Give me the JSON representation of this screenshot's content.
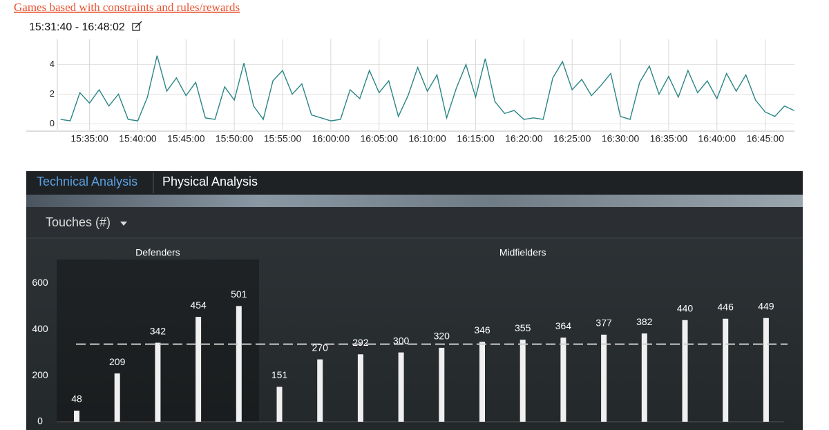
{
  "header": {
    "link": "Games based with constraints and rules/rewards",
    "time_range": "15:31:40 - 16:48:02"
  },
  "tabs": [
    "Technical Analysis",
    "Physical Analysis"
  ],
  "metric_selector": "Touches (#)",
  "chart_data": [
    {
      "type": "line",
      "color": "#2a8585",
      "x": [
        "15:32:00",
        "15:33:00",
        "15:34:00",
        "15:35:00",
        "15:36:00",
        "15:37:00",
        "15:38:00",
        "15:39:00",
        "15:40:00",
        "15:41:00",
        "15:42:00",
        "15:43:00",
        "15:44:00",
        "15:45:00",
        "15:46:00",
        "15:47:00",
        "15:48:00",
        "15:49:00",
        "15:50:00",
        "15:51:00",
        "15:52:00",
        "15:53:00",
        "15:54:00",
        "15:55:00",
        "15:56:00",
        "15:57:00",
        "15:58:00",
        "15:59:00",
        "16:00:00",
        "16:01:00",
        "16:02:00",
        "16:03:00",
        "16:04:00",
        "16:05:00",
        "16:06:00",
        "16:07:00",
        "16:08:00",
        "16:09:00",
        "16:10:00",
        "16:11:00",
        "16:12:00",
        "16:13:00",
        "16:14:00",
        "16:15:00",
        "16:16:00",
        "16:17:00",
        "16:18:00",
        "16:19:00",
        "16:20:00",
        "16:21:00",
        "16:22:00",
        "16:23:00",
        "16:24:00",
        "16:25:00",
        "16:26:00",
        "16:27:00",
        "16:28:00",
        "16:29:00",
        "16:30:00",
        "16:31:00",
        "16:32:00",
        "16:33:00",
        "16:34:00",
        "16:35:00",
        "16:36:00",
        "16:37:00",
        "16:38:00",
        "16:39:00",
        "16:40:00",
        "16:41:00",
        "16:42:00",
        "16:43:00",
        "16:44:00",
        "16:45:00",
        "16:46:00",
        "16:47:00",
        "16:48:00"
      ],
      "values": [
        0.3,
        0.2,
        2.1,
        1.4,
        2.3,
        1.2,
        2.0,
        0.3,
        0.2,
        1.8,
        4.6,
        2.2,
        3.1,
        1.9,
        2.8,
        0.4,
        0.3,
        2.5,
        1.6,
        4.1,
        1.2,
        0.3,
        2.9,
        3.6,
        2.0,
        2.7,
        0.6,
        0.4,
        0.2,
        0.3,
        2.3,
        1.7,
        3.6,
        2.1,
        2.9,
        0.5,
        1.9,
        3.8,
        2.2,
        3.3,
        0.4,
        2.4,
        4.0,
        1.8,
        4.4,
        1.5,
        0.7,
        0.9,
        0.3,
        0.4,
        0.3,
        3.1,
        4.2,
        2.3,
        3.0,
        1.9,
        2.6,
        3.4,
        0.5,
        0.3,
        2.8,
        3.9,
        2.0,
        3.2,
        1.8,
        3.6,
        2.1,
        2.9,
        1.7,
        3.4,
        2.2,
        3.3,
        1.6,
        0.8,
        0.5,
        1.2,
        0.9
      ],
      "xlim": [
        "15:31:40",
        "16:48:02"
      ],
      "xticks": [
        "15:35:00",
        "15:40:00",
        "15:45:00",
        "15:50:00",
        "15:55:00",
        "16:00:00",
        "16:05:00",
        "16:10:00",
        "16:15:00",
        "16:20:00",
        "16:25:00",
        "16:30:00",
        "16:35:00",
        "16:40:00",
        "16:45:00"
      ],
      "ylim": [
        -0.4,
        5.7
      ],
      "yticks": [
        0,
        2,
        4
      ],
      "grid": true
    },
    {
      "type": "bar",
      "color": "#f0f0f0",
      "groups": [
        {
          "name": "Defenders",
          "values": [
            48,
            209,
            342,
            454,
            501
          ]
        },
        {
          "name": "Midfielders",
          "values": [
            151,
            270,
            292,
            300,
            320,
            346,
            355,
            364,
            377,
            382,
            440,
            446,
            449
          ]
        }
      ],
      "ylim": [
        0,
        780
      ],
      "yticks": [
        0,
        200,
        400,
        600
      ],
      "reference_line": 336
    }
  ]
}
